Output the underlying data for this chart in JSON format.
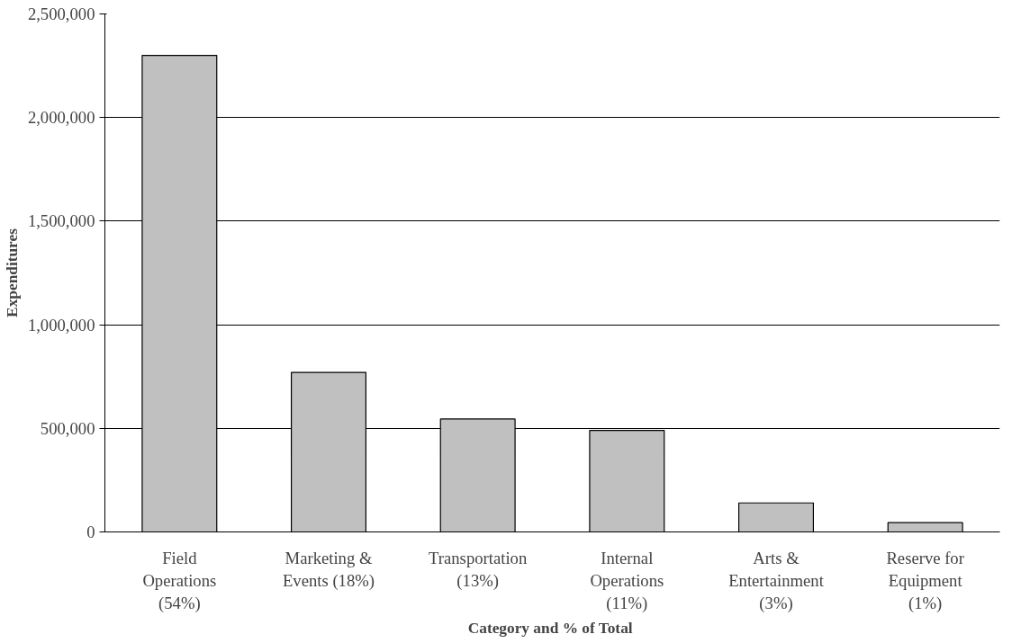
{
  "chart_data": {
    "type": "bar",
    "categories": [
      "Field\nOperations\n(54%)",
      "Marketing &\nEvents (18%)",
      "Transportation\n(13%)",
      "Internal\nOperations\n(11%)",
      "Arts &\nEntertainment\n(3%)",
      "Reserve for\nEquipment\n(1%)"
    ],
    "values": [
      2300000,
      770000,
      545000,
      490000,
      140000,
      45000
    ],
    "color": "#c0c0c0",
    "xlabel": "Category and %  of Total",
    "ylabel": "Expenditures",
    "ylim": [
      0,
      2500000
    ],
    "yticks": [
      {
        "value": 0,
        "label": "0"
      },
      {
        "value": 500000,
        "label": "500,000"
      },
      {
        "value": 1000000,
        "label": "1,000,000"
      },
      {
        "value": 1500000,
        "label": "1,500,000"
      },
      {
        "value": 2000000,
        "label": "2,000,000"
      },
      {
        "value": 2500000,
        "label": "2,500,000"
      }
    ],
    "grid": "y"
  }
}
